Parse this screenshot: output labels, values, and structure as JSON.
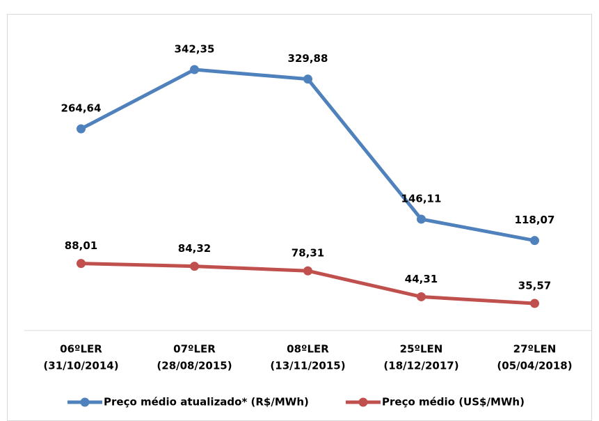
{
  "chart_data": {
    "type": "line",
    "categories": [
      [
        "06ºLER",
        "(31/10/2014)"
      ],
      [
        "07ºLER",
        "(28/08/2015)"
      ],
      [
        "08ºLER",
        "(13/11/2015)"
      ],
      [
        "25ºLEN",
        "(18/12/2017)"
      ],
      [
        "27ºLEN",
        "(05/04/2018)"
      ]
    ],
    "series": [
      {
        "name": "Preço médio atualizado* (R$/MWh)",
        "color": "#4f81bd",
        "values": [
          264.64,
          342.35,
          329.88,
          146.11,
          118.07
        ],
        "value_labels": [
          "264,64",
          "342,35",
          "329,88",
          "146,11",
          "118,07"
        ]
      },
      {
        "name": "Preço médio (US$/MWh)",
        "color": "#c0504d",
        "values": [
          88.01,
          84.32,
          78.31,
          44.31,
          35.57
        ],
        "value_labels": [
          "88,01",
          "84,32",
          "78,31",
          "44,31",
          "35,57"
        ]
      }
    ],
    "legend": "bottom"
  }
}
